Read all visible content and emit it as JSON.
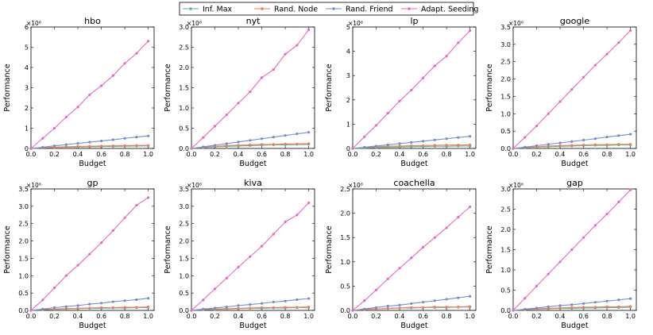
{
  "figure": {
    "shared_xlabel": "Budget",
    "shared_ylabel": "Performance",
    "exponent_label": "×10⁶",
    "legend": [
      {
        "name": "Inf. Max",
        "color": "#4fb7a2"
      },
      {
        "name": "Rand. Node",
        "color": "#f47a52"
      },
      {
        "name": "Rand. Friend",
        "color": "#6f8ed2"
      },
      {
        "name": "Adapt. Seeding",
        "color": "#e567c6"
      }
    ]
  },
  "chart_data": [
    {
      "type": "line",
      "title": "hbo",
      "xlabel": "Budget",
      "ylabel": "Performance",
      "x": [
        0.0,
        0.1,
        0.2,
        0.3,
        0.4,
        0.5,
        0.6,
        0.7,
        0.8,
        0.9,
        1.0
      ],
      "xlim": [
        0,
        1.05
      ],
      "ylim": [
        0,
        6
      ],
      "yticks": [
        "0",
        "1",
        "2",
        "3",
        "4",
        "5",
        "6"
      ],
      "yticks_values": [
        0,
        1,
        2,
        3,
        4,
        5,
        6
      ],
      "xticks": [
        "0.0",
        "0.2",
        "0.4",
        "0.6",
        "0.8",
        "1.0"
      ],
      "series": [
        {
          "name": "Inf. Max",
          "values": [
            0,
            0.03,
            0.05,
            0.06,
            0.07,
            0.08,
            0.09,
            0.1,
            0.11,
            0.12,
            0.13
          ]
        },
        {
          "name": "Rand. Node",
          "values": [
            0,
            0.03,
            0.06,
            0.08,
            0.1,
            0.11,
            0.12,
            0.13,
            0.14,
            0.15,
            0.15
          ]
        },
        {
          "name": "Rand. Friend",
          "values": [
            0,
            0.06,
            0.13,
            0.19,
            0.25,
            0.31,
            0.37,
            0.43,
            0.5,
            0.56,
            0.62
          ]
        },
        {
          "name": "Adapt. Seeding",
          "values": [
            0,
            0.5,
            1.0,
            1.55,
            2.05,
            2.65,
            3.1,
            3.6,
            4.2,
            4.7,
            5.3
          ]
        }
      ]
    },
    {
      "type": "line",
      "title": "nyt",
      "xlabel": "Budget",
      "ylabel": "Performance",
      "x": [
        0.0,
        0.1,
        0.2,
        0.3,
        0.4,
        0.5,
        0.6,
        0.7,
        0.8,
        0.9,
        1.0
      ],
      "xlim": [
        0,
        1.05
      ],
      "ylim": [
        0,
        3.0
      ],
      "yticks": [
        "0.0",
        "0.5",
        "1.0",
        "1.5",
        "2.0",
        "2.5",
        "3.0"
      ],
      "yticks_values": [
        0,
        0.5,
        1.0,
        1.5,
        2.0,
        2.5,
        3.0
      ],
      "xticks": [
        "0.0",
        "0.2",
        "0.4",
        "0.6",
        "0.8",
        "1.0"
      ],
      "series": [
        {
          "name": "Inf. Max",
          "values": [
            0,
            0.02,
            0.04,
            0.05,
            0.06,
            0.07,
            0.08,
            0.09,
            0.09,
            0.1,
            0.1
          ]
        },
        {
          "name": "Rand. Node",
          "values": [
            0,
            0.03,
            0.05,
            0.07,
            0.08,
            0.09,
            0.1,
            0.1,
            0.11,
            0.11,
            0.12
          ]
        },
        {
          "name": "Rand. Friend",
          "values": [
            0,
            0.04,
            0.08,
            0.12,
            0.16,
            0.2,
            0.24,
            0.28,
            0.32,
            0.36,
            0.4
          ]
        },
        {
          "name": "Adapt. Seeding",
          "values": [
            0,
            0.27,
            0.55,
            0.83,
            1.12,
            1.4,
            1.75,
            1.95,
            2.33,
            2.55,
            2.93
          ]
        }
      ]
    },
    {
      "type": "line",
      "title": "lp",
      "xlabel": "Budget",
      "ylabel": "Performance",
      "x": [
        0.0,
        0.1,
        0.2,
        0.3,
        0.4,
        0.5,
        0.6,
        0.7,
        0.8,
        0.9,
        1.0
      ],
      "xlim": [
        0,
        1.05
      ],
      "ylim": [
        0,
        5
      ],
      "yticks": [
        "0",
        "1",
        "2",
        "3",
        "4",
        "5"
      ],
      "yticks_values": [
        0,
        1,
        2,
        3,
        4,
        5
      ],
      "xticks": [
        "0.0",
        "0.2",
        "0.4",
        "0.6",
        "0.8",
        "1.0"
      ],
      "series": [
        {
          "name": "Inf. Max",
          "values": [
            0,
            0.02,
            0.04,
            0.05,
            0.06,
            0.07,
            0.08,
            0.09,
            0.09,
            0.1,
            0.1
          ]
        },
        {
          "name": "Rand. Node",
          "values": [
            0,
            0.04,
            0.07,
            0.09,
            0.1,
            0.11,
            0.12,
            0.13,
            0.14,
            0.14,
            0.15
          ]
        },
        {
          "name": "Rand. Friend",
          "values": [
            0,
            0.05,
            0.1,
            0.15,
            0.2,
            0.25,
            0.3,
            0.35,
            0.4,
            0.45,
            0.5
          ]
        },
        {
          "name": "Adapt. Seeding",
          "values": [
            0,
            0.48,
            0.95,
            1.45,
            1.95,
            2.4,
            2.9,
            3.4,
            3.8,
            4.35,
            4.85
          ]
        }
      ]
    },
    {
      "type": "line",
      "title": "google",
      "xlabel": "Budget",
      "ylabel": "Performance",
      "x": [
        0.0,
        0.1,
        0.2,
        0.3,
        0.4,
        0.5,
        0.6,
        0.7,
        0.8,
        0.9,
        1.0
      ],
      "xlim": [
        0,
        1.05
      ],
      "ylim": [
        0,
        3.5
      ],
      "yticks": [
        "0.0",
        "0.5",
        "1.0",
        "1.5",
        "2.0",
        "2.5",
        "3.0",
        "3.5"
      ],
      "yticks_values": [
        0,
        0.5,
        1.0,
        1.5,
        2.0,
        2.5,
        3.0,
        3.5
      ],
      "xticks": [
        "0.0",
        "0.2",
        "0.4",
        "0.6",
        "0.8",
        "1.0"
      ],
      "series": [
        {
          "name": "Inf. Max",
          "values": [
            0,
            0.02,
            0.04,
            0.05,
            0.06,
            0.07,
            0.08,
            0.09,
            0.09,
            0.1,
            0.1
          ]
        },
        {
          "name": "Rand. Node",
          "values": [
            0,
            0.03,
            0.05,
            0.07,
            0.08,
            0.09,
            0.1,
            0.11,
            0.11,
            0.12,
            0.12
          ]
        },
        {
          "name": "Rand. Friend",
          "values": [
            0,
            0.04,
            0.08,
            0.12,
            0.16,
            0.2,
            0.24,
            0.28,
            0.33,
            0.37,
            0.41
          ]
        },
        {
          "name": "Adapt. Seeding",
          "values": [
            0,
            0.32,
            0.65,
            1.0,
            1.35,
            1.7,
            2.05,
            2.4,
            2.72,
            3.05,
            3.4
          ]
        }
      ]
    },
    {
      "type": "line",
      "title": "gp",
      "xlabel": "Budget",
      "ylabel": "Performance",
      "x": [
        0.0,
        0.1,
        0.2,
        0.3,
        0.4,
        0.5,
        0.6,
        0.7,
        0.8,
        0.9,
        1.0
      ],
      "xlim": [
        0,
        1.05
      ],
      "ylim": [
        0,
        3.5
      ],
      "yticks": [
        "0.0",
        "0.5",
        "1.0",
        "1.5",
        "2.0",
        "2.5",
        "3.0",
        "3.5"
      ],
      "yticks_values": [
        0,
        0.5,
        1.0,
        1.5,
        2.0,
        2.5,
        3.0,
        3.5
      ],
      "xticks": [
        "0.0",
        "0.2",
        "0.4",
        "0.6",
        "0.8",
        "1.0"
      ],
      "series": [
        {
          "name": "Inf. Max",
          "values": [
            0,
            0.02,
            0.03,
            0.04,
            0.05,
            0.06,
            0.06,
            0.07,
            0.07,
            0.08,
            0.08
          ]
        },
        {
          "name": "Rand. Node",
          "values": [
            0,
            0.03,
            0.04,
            0.05,
            0.06,
            0.07,
            0.08,
            0.08,
            0.09,
            0.09,
            0.1
          ]
        },
        {
          "name": "Rand. Friend",
          "values": [
            0,
            0.04,
            0.08,
            0.11,
            0.14,
            0.18,
            0.21,
            0.25,
            0.28,
            0.31,
            0.35
          ]
        },
        {
          "name": "Adapt. Seeding",
          "values": [
            0,
            0.3,
            0.65,
            1.0,
            1.3,
            1.62,
            1.95,
            2.3,
            2.67,
            3.03,
            3.25
          ]
        }
      ]
    },
    {
      "type": "line",
      "title": "kiva",
      "xlabel": "Budget",
      "ylabel": "Performance",
      "x": [
        0.0,
        0.1,
        0.2,
        0.3,
        0.4,
        0.5,
        0.6,
        0.7,
        0.8,
        0.9,
        1.0
      ],
      "xlim": [
        0,
        1.05
      ],
      "ylim": [
        0,
        3.5
      ],
      "yticks": [
        "0.0",
        "0.5",
        "1.0",
        "1.5",
        "2.0",
        "2.5",
        "3.0",
        "3.5"
      ],
      "yticks_values": [
        0,
        0.5,
        1.0,
        1.5,
        2.0,
        2.5,
        3.0,
        3.5
      ],
      "xticks": [
        "0.0",
        "0.2",
        "0.4",
        "0.6",
        "0.8",
        "1.0"
      ],
      "series": [
        {
          "name": "Inf. Max",
          "values": [
            0,
            0.02,
            0.03,
            0.04,
            0.05,
            0.06,
            0.06,
            0.07,
            0.07,
            0.08,
            0.08
          ]
        },
        {
          "name": "Rand. Node",
          "values": [
            0,
            0.03,
            0.04,
            0.05,
            0.06,
            0.07,
            0.08,
            0.08,
            0.09,
            0.09,
            0.1
          ]
        },
        {
          "name": "Rand. Friend",
          "values": [
            0,
            0.04,
            0.07,
            0.1,
            0.14,
            0.17,
            0.2,
            0.24,
            0.27,
            0.31,
            0.34
          ]
        },
        {
          "name": "Adapt. Seeding",
          "values": [
            0,
            0.3,
            0.62,
            0.93,
            1.25,
            1.55,
            1.85,
            2.2,
            2.55,
            2.75,
            3.1
          ]
        }
      ]
    },
    {
      "type": "line",
      "title": "coachella",
      "xlabel": "Budget",
      "ylabel": "Performance",
      "x": [
        0.0,
        0.1,
        0.2,
        0.3,
        0.4,
        0.5,
        0.6,
        0.7,
        0.8,
        0.9,
        1.0
      ],
      "xlim": [
        0,
        1.05
      ],
      "ylim": [
        0,
        2.5
      ],
      "yticks": [
        "0.0",
        "0.5",
        "1.0",
        "1.5",
        "2.0",
        "2.5"
      ],
      "yticks_values": [
        0,
        0.5,
        1.0,
        1.5,
        2.0,
        2.5
      ],
      "xticks": [
        "0.0",
        "0.2",
        "0.4",
        "0.6",
        "0.8",
        "1.0"
      ],
      "series": [
        {
          "name": "Inf. Max",
          "values": [
            0,
            0.02,
            0.03,
            0.04,
            0.05,
            0.05,
            0.06,
            0.06,
            0.06,
            0.07,
            0.07
          ]
        },
        {
          "name": "Rand. Node",
          "values": [
            0,
            0.02,
            0.03,
            0.04,
            0.05,
            0.06,
            0.06,
            0.07,
            0.07,
            0.07,
            0.08
          ]
        },
        {
          "name": "Rand. Friend",
          "values": [
            0,
            0.03,
            0.06,
            0.09,
            0.11,
            0.14,
            0.17,
            0.2,
            0.23,
            0.26,
            0.29
          ]
        },
        {
          "name": "Adapt. Seeding",
          "values": [
            0,
            0.2,
            0.42,
            0.65,
            0.87,
            1.08,
            1.3,
            1.5,
            1.7,
            1.92,
            2.13
          ]
        }
      ]
    },
    {
      "type": "line",
      "title": "gap",
      "xlabel": "Budget",
      "ylabel": "Performance",
      "x": [
        0.0,
        0.1,
        0.2,
        0.3,
        0.4,
        0.5,
        0.6,
        0.7,
        0.8,
        0.9,
        1.0
      ],
      "xlim": [
        0,
        1.05
      ],
      "ylim": [
        0,
        3.0
      ],
      "yticks": [
        "0.0",
        "0.5",
        "1.0",
        "1.5",
        "2.0",
        "2.5",
        "3.0"
      ],
      "yticks_values": [
        0,
        0.5,
        1.0,
        1.5,
        2.0,
        2.5,
        3.0
      ],
      "xticks": [
        "0.0",
        "0.2",
        "0.4",
        "0.6",
        "0.8",
        "1.0"
      ],
      "series": [
        {
          "name": "Inf. Max",
          "values": [
            0,
            0.02,
            0.03,
            0.04,
            0.05,
            0.05,
            0.06,
            0.06,
            0.07,
            0.07,
            0.08
          ]
        },
        {
          "name": "Rand. Node",
          "values": [
            0,
            0.02,
            0.04,
            0.05,
            0.06,
            0.07,
            0.08,
            0.08,
            0.09,
            0.09,
            0.1
          ]
        },
        {
          "name": "Rand. Friend",
          "values": [
            0,
            0.03,
            0.06,
            0.09,
            0.12,
            0.14,
            0.17,
            0.2,
            0.23,
            0.26,
            0.29
          ]
        },
        {
          "name": "Adapt. Seeding",
          "values": [
            0,
            0.3,
            0.6,
            0.9,
            1.2,
            1.5,
            1.8,
            2.1,
            2.38,
            2.68,
            2.98
          ]
        }
      ]
    }
  ]
}
